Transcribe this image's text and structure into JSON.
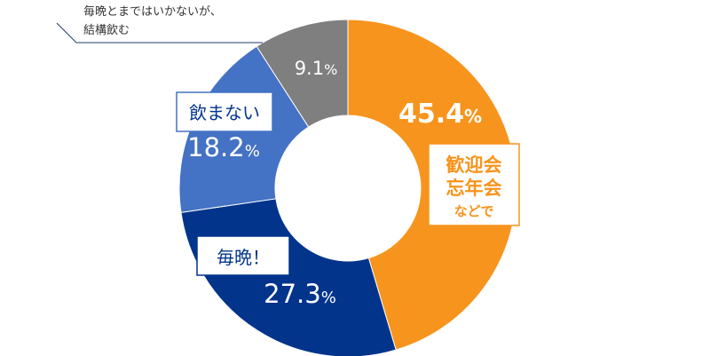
{
  "chart_data": {
    "type": "pie",
    "title": "",
    "categories": [
      "歓迎会忘年会などで",
      "毎晩！",
      "飲まない",
      "毎晩とまではいかないが、結構飲む"
    ],
    "values": [
      45.4,
      27.3,
      18.2,
      9.1
    ],
    "unit": "%",
    "value_labels": [
      "45.4",
      "27.3",
      "18.2",
      "9.1"
    ],
    "colors": [
      "#F7941D",
      "#02348C",
      "#4472C4",
      "#7F7F7F"
    ],
    "legend": "none"
  },
  "labels": {
    "orange_line1": "歓迎会",
    "orange_line2": "忘年会",
    "orange_line3": "などで",
    "navy": "毎晩！",
    "blue": "飲まない",
    "gray_line1": "毎晩とまではいかないが、",
    "gray_line2": "結構飲む"
  }
}
